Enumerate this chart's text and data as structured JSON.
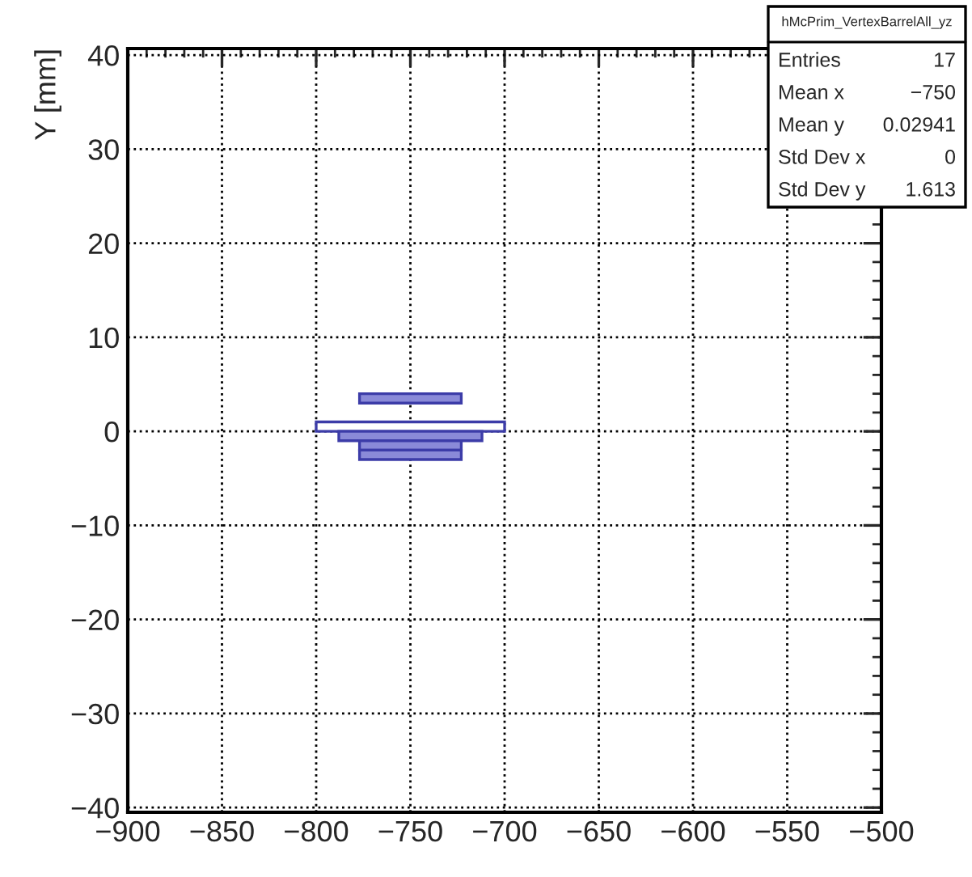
{
  "chart_data": {
    "type": "bar",
    "orientation": "horizontal",
    "ylabel": "Y [mm]",
    "x": [
      3.5,
      0.5,
      -0.5,
      -1.5,
      -2.5
    ],
    "base": [
      -777,
      -800,
      -788,
      -777,
      -777
    ],
    "values": [
      54,
      100,
      76,
      54,
      54
    ],
    "colors": [
      "#8a8ad8",
      "#ffffff",
      "#8a8ad8",
      "#8a8ad8",
      "#8a8ad8"
    ],
    "xlim": [
      -900,
      -500
    ],
    "xticks": [
      -900,
      -850,
      -800,
      -750,
      -700,
      -650,
      -600,
      -550,
      -500
    ],
    "ylim": [
      -40.5,
      40.7
    ],
    "yticks": [
      -40,
      -30,
      -20,
      -10,
      0,
      10,
      20,
      30,
      40
    ],
    "grid": true,
    "annotations": [
      "hMcPrim_VertexBarrelAll_yz",
      "Entries\t17",
      "Mean x\t−750",
      "Mean y\t0.02941",
      "Std Dev x\t0",
      "Std Dev y\t1.613"
    ]
  }
}
